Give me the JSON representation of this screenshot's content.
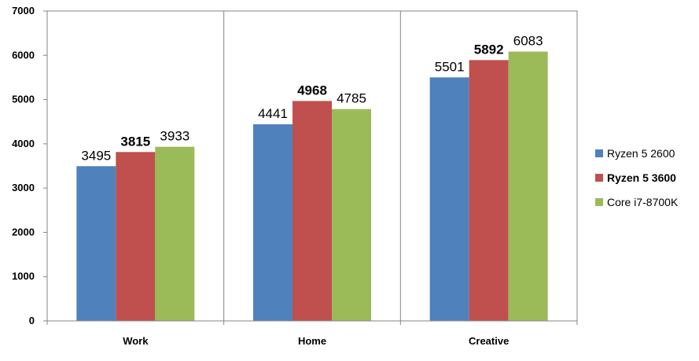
{
  "chart_data": {
    "type": "bar",
    "title": "",
    "xlabel": "",
    "ylabel": "",
    "categories": [
      "Work",
      "Home",
      "Creative"
    ],
    "ylim": [
      0,
      7000
    ],
    "yticks": [
      0,
      1000,
      2000,
      3000,
      4000,
      5000,
      6000,
      7000
    ],
    "grid": {
      "horizontal": false,
      "vertical": true
    },
    "legend_position": "right",
    "series": [
      {
        "name": "Ryzen 5 2600",
        "color": "#4F81BD",
        "bold": false,
        "values": [
          3495,
          4441,
          5501
        ]
      },
      {
        "name": "Ryzen 5 3600",
        "color": "#C0504D",
        "bold": true,
        "values": [
          3815,
          4968,
          5892
        ]
      },
      {
        "name": "Core i7-8700K",
        "color": "#9BBB59",
        "bold": false,
        "values": [
          3933,
          4785,
          6083
        ]
      }
    ]
  }
}
